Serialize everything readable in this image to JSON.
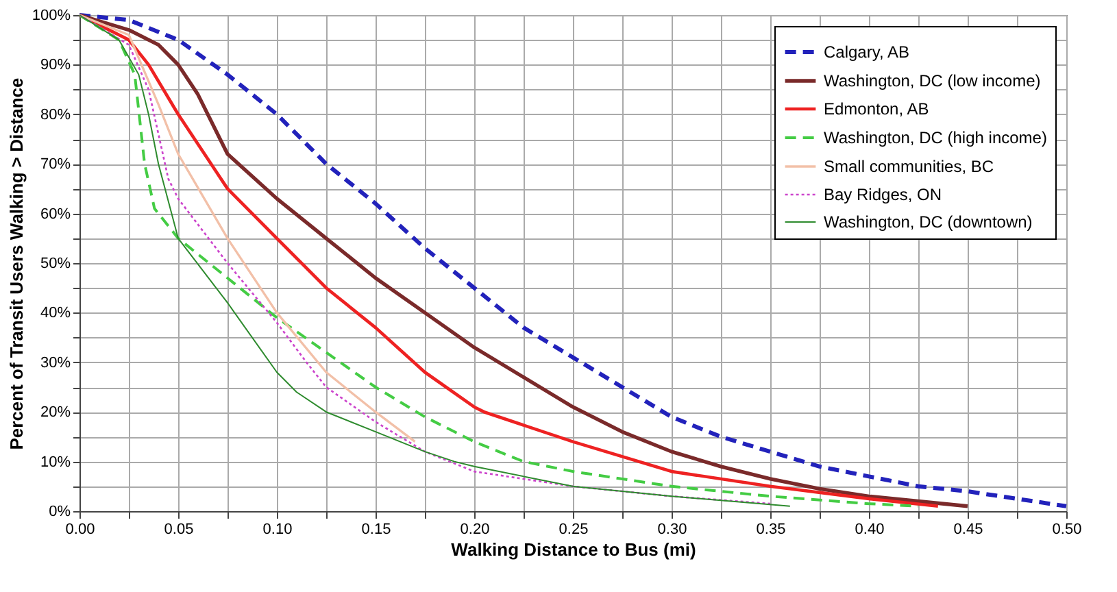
{
  "chart_data": {
    "type": "line",
    "xlabel": "Walking Distance to Bus (mi)",
    "ylabel": "Percent of Transit Users Walking > Distance",
    "xlim": [
      0,
      0.5
    ],
    "ylim": [
      0,
      100
    ],
    "xticks": [
      {
        "value": 0,
        "label": "0.00"
      },
      {
        "value": 0.025,
        "label": null
      },
      {
        "value": 0.05,
        "label": "0.05"
      },
      {
        "value": 0.075,
        "label": null
      },
      {
        "value": 0.1,
        "label": "0.10"
      },
      {
        "value": 0.125,
        "label": null
      },
      {
        "value": 0.15,
        "label": "0.15"
      },
      {
        "value": 0.175,
        "label": null
      },
      {
        "value": 0.2,
        "label": "0.20"
      },
      {
        "value": 0.225,
        "label": null
      },
      {
        "value": 0.25,
        "label": "0.25"
      },
      {
        "value": 0.275,
        "label": null
      },
      {
        "value": 0.3,
        "label": "0.30"
      },
      {
        "value": 0.325,
        "label": null
      },
      {
        "value": 0.35,
        "label": "0.35"
      },
      {
        "value": 0.375,
        "label": null
      },
      {
        "value": 0.4,
        "label": "0.40"
      },
      {
        "value": 0.425,
        "label": null
      },
      {
        "value": 0.45,
        "label": "0.45"
      },
      {
        "value": 0.475,
        "label": null
      },
      {
        "value": 0.5,
        "label": "0.50"
      }
    ],
    "yticks": [
      {
        "value": 0,
        "label": "0%"
      },
      {
        "value": 5,
        "label": null
      },
      {
        "value": 10,
        "label": "10%"
      },
      {
        "value": 15,
        "label": null
      },
      {
        "value": 20,
        "label": "20%"
      },
      {
        "value": 25,
        "label": null
      },
      {
        "value": 30,
        "label": "30%"
      },
      {
        "value": 35,
        "label": null
      },
      {
        "value": 40,
        "label": "40%"
      },
      {
        "value": 45,
        "label": null
      },
      {
        "value": 50,
        "label": "50%"
      },
      {
        "value": 55,
        "label": null
      },
      {
        "value": 60,
        "label": "60%"
      },
      {
        "value": 65,
        "label": null
      },
      {
        "value": 70,
        "label": "70%"
      },
      {
        "value": 75,
        "label": null
      },
      {
        "value": 80,
        "label": "80%"
      },
      {
        "value": 85,
        "label": null
      },
      {
        "value": 90,
        "label": "90%"
      },
      {
        "value": 95,
        "label": null
      },
      {
        "value": 100,
        "label": "100%"
      }
    ],
    "grid": true,
    "legend": "top right",
    "marker": "none",
    "series": [
      {
        "name": "Calgary, AB",
        "color": "#2222bb",
        "line_style": "dashed",
        "x": [
          0,
          0.025,
          0.05,
          0.075,
          0.1,
          0.125,
          0.15,
          0.175,
          0.2,
          0.225,
          0.25,
          0.275,
          0.3,
          0.325,
          0.35,
          0.375,
          0.4,
          0.425,
          0.45,
          0.475,
          0.5
        ],
        "values": [
          100,
          99,
          95,
          88,
          80,
          70,
          62,
          53,
          45,
          37,
          31,
          25,
          19,
          15,
          12,
          9,
          7,
          5,
          4,
          2.5,
          1
        ]
      },
      {
        "name": "Washington, DC (low income)",
        "color": "#7a2a2a",
        "line_style": "solid",
        "x": [
          0,
          0.025,
          0.04,
          0.05,
          0.06,
          0.075,
          0.1,
          0.125,
          0.15,
          0.175,
          0.2,
          0.225,
          0.25,
          0.275,
          0.3,
          0.325,
          0.35,
          0.375,
          0.4,
          0.45
        ],
        "values": [
          100,
          97,
          94,
          90,
          84,
          72,
          63,
          55,
          47,
          40,
          33,
          27,
          21,
          16,
          12,
          9,
          6.5,
          4.5,
          3,
          1
        ]
      },
      {
        "name": "Edmonton, AB",
        "color": "#ee2222",
        "line_style": "solid",
        "x": [
          0,
          0.025,
          0.035,
          0.05,
          0.075,
          0.1,
          0.125,
          0.15,
          0.175,
          0.2,
          0.205,
          0.25,
          0.3,
          0.35,
          0.4,
          0.435
        ],
        "values": [
          100,
          95,
          90,
          80,
          65,
          55,
          45,
          37,
          28,
          21,
          20,
          14,
          8,
          5,
          2.5,
          1
        ]
      },
      {
        "name": "Washington, DC (high income)",
        "color": "#44cc44",
        "line_style": "dashed",
        "x": [
          0,
          0.02,
          0.028,
          0.033,
          0.038,
          0.05,
          0.075,
          0.1,
          0.125,
          0.15,
          0.175,
          0.2,
          0.225,
          0.25,
          0.3,
          0.35,
          0.4,
          0.425
        ],
        "values": [
          100,
          95,
          88,
          70,
          61,
          55,
          47,
          39,
          32,
          25,
          19,
          14,
          10,
          8,
          5,
          3,
          1.5,
          1
        ]
      },
      {
        "name": "Small communities, BC",
        "color": "#f2c0a8",
        "line_style": "solid",
        "x": [
          0,
          0.025,
          0.04,
          0.05,
          0.075,
          0.1,
          0.125,
          0.15,
          0.17
        ],
        "values": [
          100,
          96,
          82,
          72,
          55,
          40,
          28,
          20,
          14
        ]
      },
      {
        "name": "Bay Ridges, ON",
        "color": "#cc44cc",
        "line_style": "dotted",
        "x": [
          0,
          0.025,
          0.035,
          0.045,
          0.05,
          0.075,
          0.1,
          0.115,
          0.125,
          0.15,
          0.175,
          0.2,
          0.25,
          0.3,
          0.35
        ],
        "values": [
          100,
          94,
          85,
          67,
          63,
          50,
          38,
          30,
          25,
          18,
          12,
          8,
          5,
          3,
          1.5
        ]
      },
      {
        "name": "Washington, DC (downtown)",
        "color": "#2e8b2e",
        "line_style": "solid",
        "x": [
          0,
          0.02,
          0.03,
          0.035,
          0.04,
          0.05,
          0.075,
          0.1,
          0.11,
          0.125,
          0.15,
          0.175,
          0.19,
          0.2,
          0.25,
          0.3,
          0.36
        ],
        "values": [
          100,
          95,
          88,
          80,
          70,
          55,
          42,
          28,
          24,
          20,
          16,
          12,
          10,
          9,
          5,
          3,
          1
        ]
      }
    ]
  }
}
